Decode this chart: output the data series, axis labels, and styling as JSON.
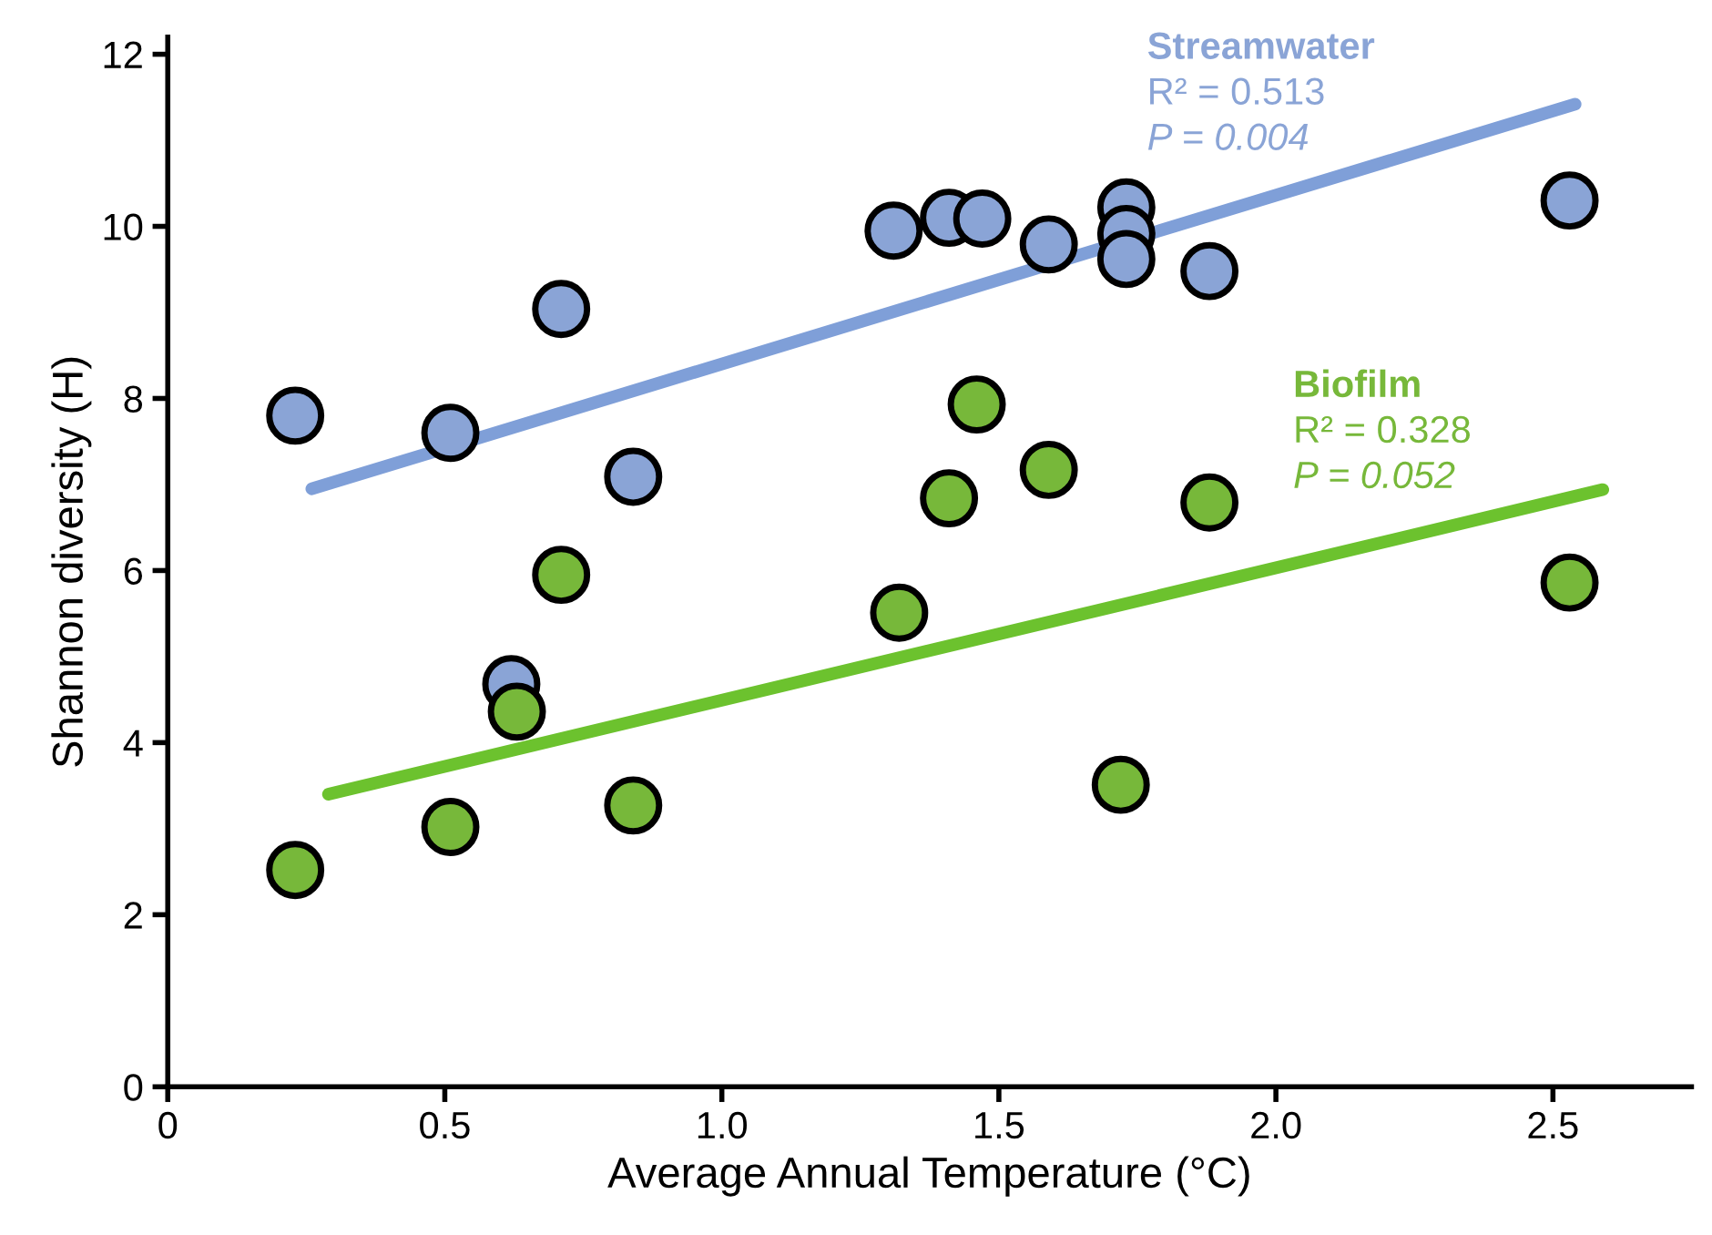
{
  "chart_data": {
    "type": "scatter",
    "xlabel": "Average Annual Temperature (°C)",
    "ylabel": "Shannon diversity (H)",
    "xlim": [
      0,
      2.75
    ],
    "ylim": [
      0,
      12.2
    ],
    "xticks": [
      0,
      0.5,
      {
        "value": 1,
        "label": "1.0"
      },
      1.5,
      {
        "value": 2,
        "label": "2.0"
      },
      2.5
    ],
    "yticks": [
      0,
      2,
      4,
      6,
      8,
      10,
      12
    ],
    "grid": false,
    "legend": false,
    "annotations": [
      "R² = 0.513",
      "P = 0.004",
      "R² = 0.328",
      "P = 0.052"
    ],
    "series": [
      {
        "name": "Streamwater",
        "marker": "circle",
        "color": "#8aa4d6",
        "x": [
          0.23,
          0.51,
          0.62,
          0.71,
          0.84,
          1.31,
          1.41,
          1.47,
          1.59,
          1.73,
          1.73,
          1.73,
          1.88,
          2.53
        ],
        "values": [
          7.8,
          7.6,
          4.68,
          9.04,
          7.09,
          9.95,
          10.1,
          10.09,
          9.79,
          10.22,
          9.91,
          9.62,
          9.48,
          10.3
        ]
      },
      {
        "type": "line",
        "marker": "none",
        "color": "#7f9fd8",
        "x": [
          0.26,
          2.54
        ],
        "values": [
          6.95,
          11.42
        ]
      },
      {
        "name": "Biofilm",
        "marker": "circle",
        "color": "#77b83a",
        "x": [
          0.23,
          0.51,
          0.63,
          0.71,
          0.84,
          1.32,
          1.41,
          1.46,
          1.59,
          1.72,
          1.88,
          2.53
        ],
        "values": [
          2.52,
          3.02,
          4.36,
          5.95,
          3.27,
          5.51,
          6.84,
          7.93,
          7.17,
          3.51,
          6.79,
          5.86
        ]
      },
      {
        "type": "line",
        "marker": "none",
        "color": "#6cc22e",
        "x": [
          0.29,
          2.59
        ],
        "values": [
          3.4,
          6.94
        ]
      }
    ]
  }
}
